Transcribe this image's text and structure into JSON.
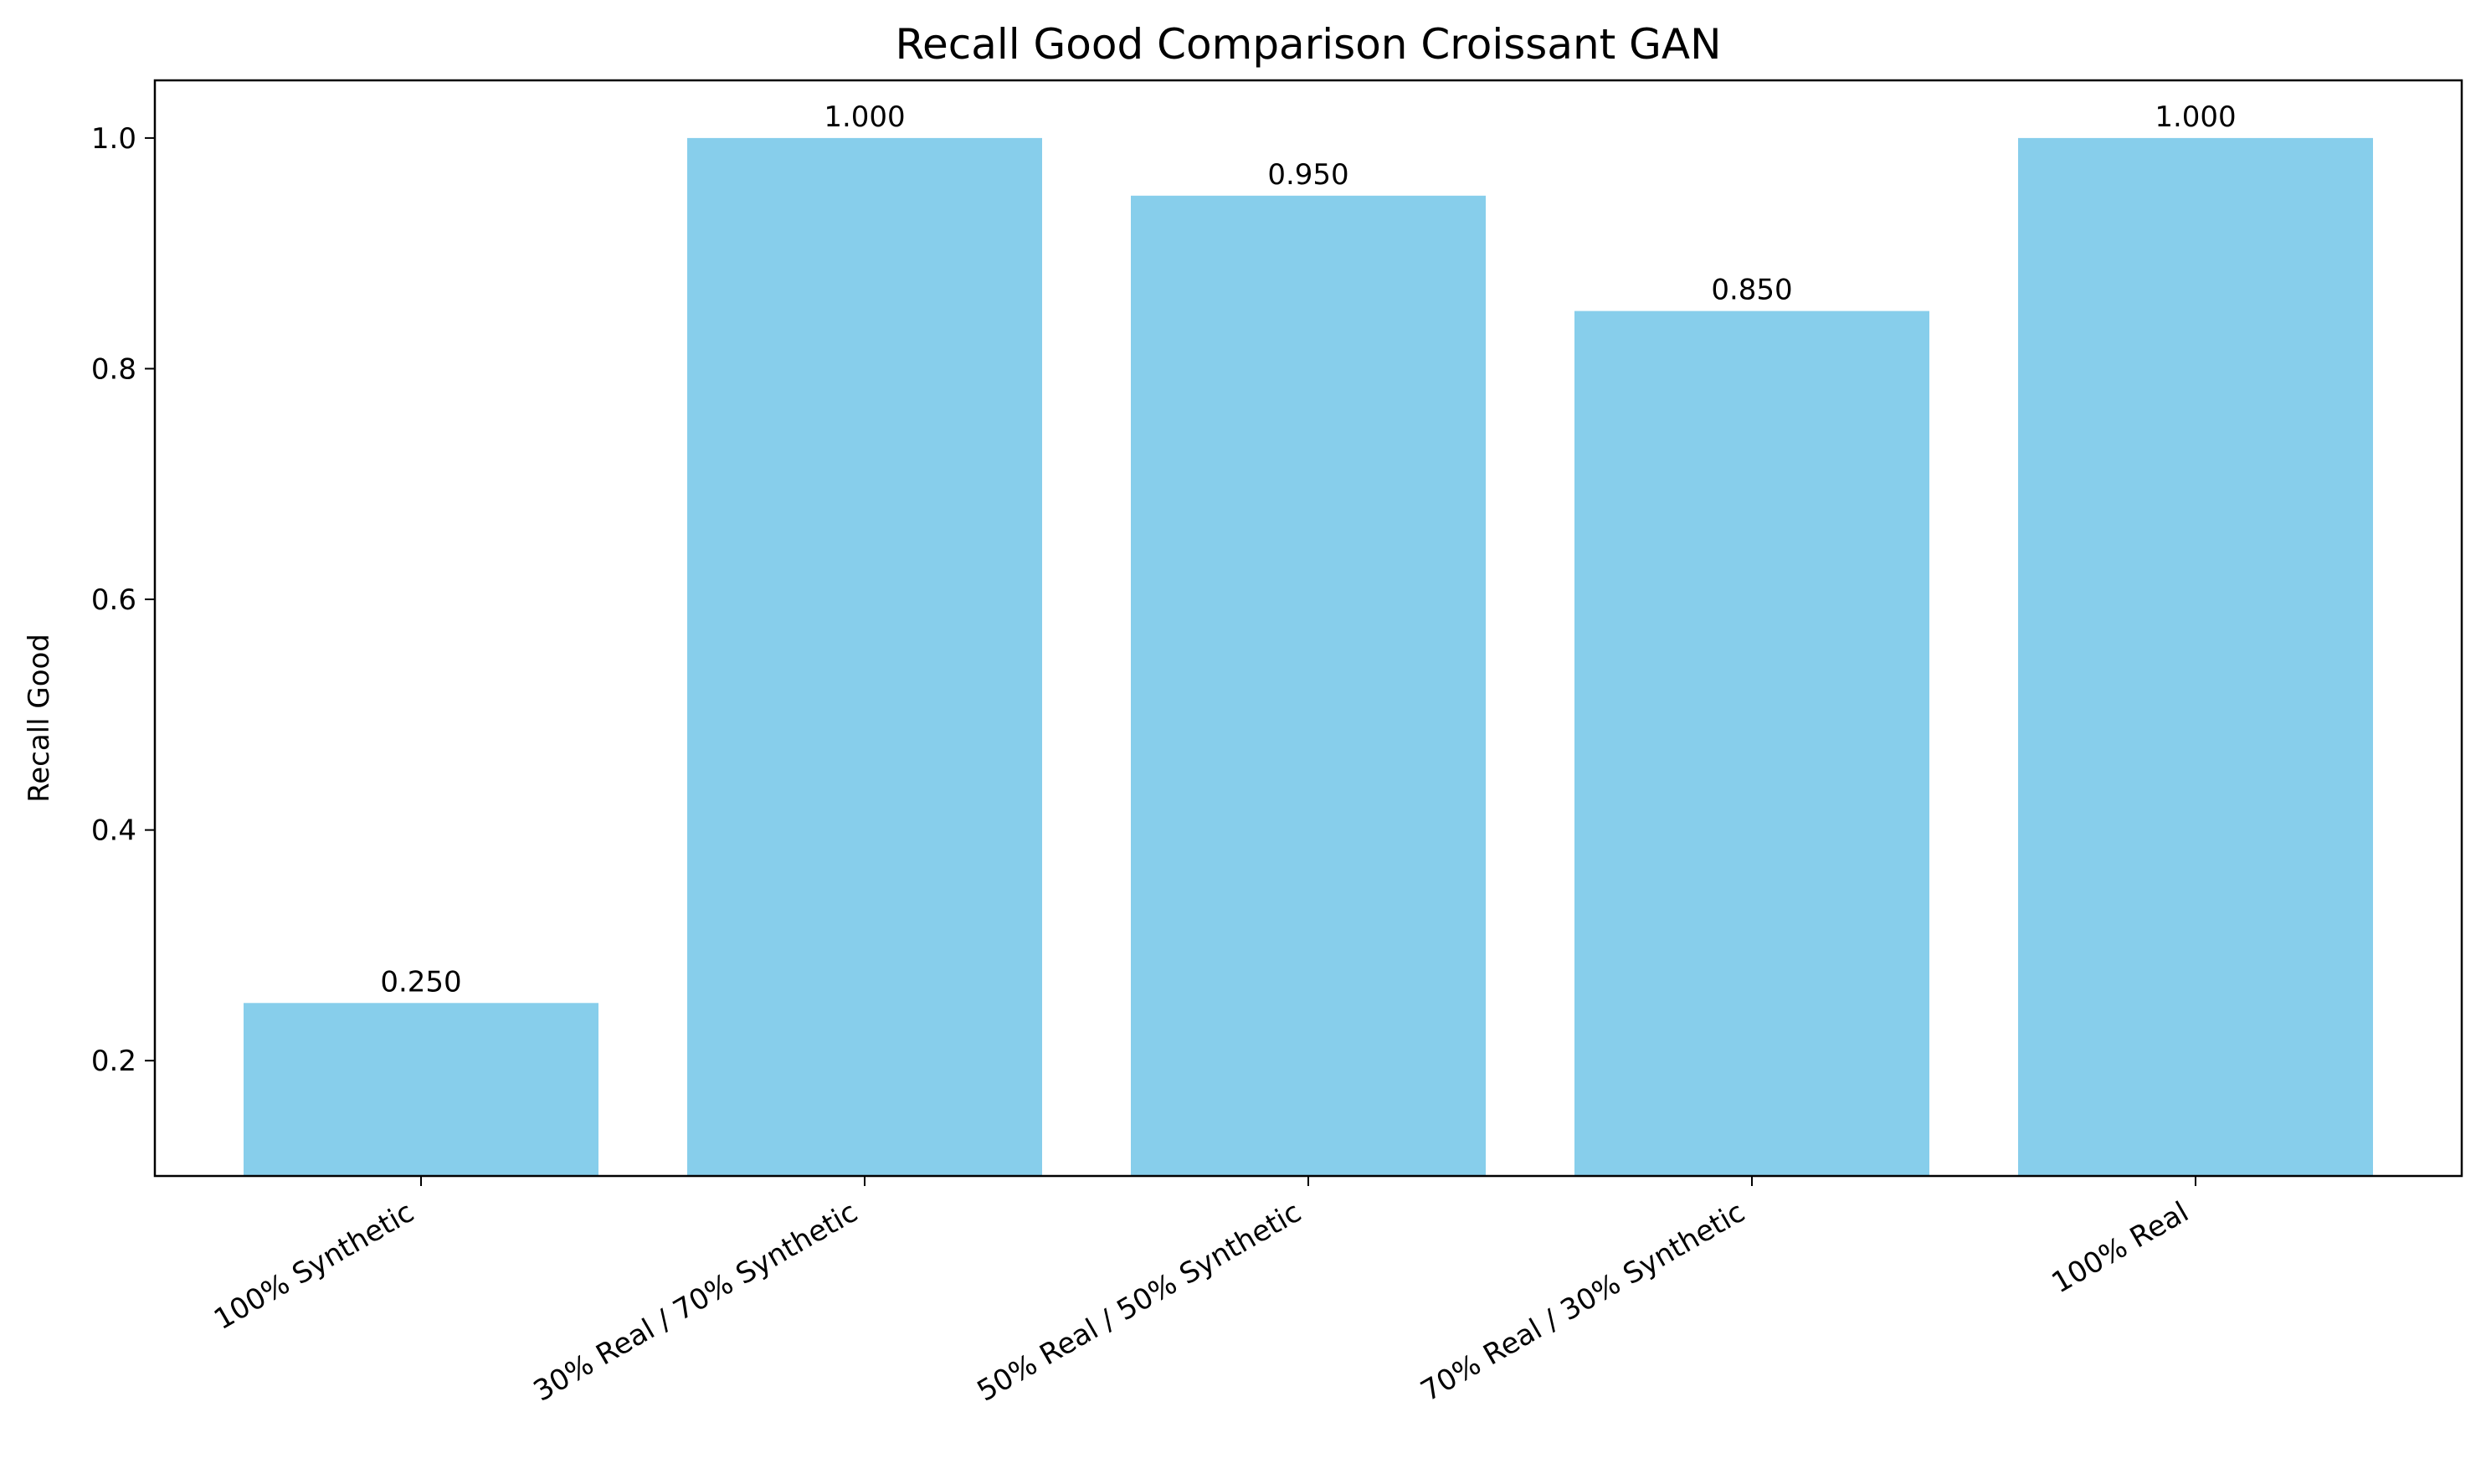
{
  "chart_data": {
    "type": "bar",
    "title": "Recall Good Comparison Croissant GAN",
    "xlabel": "",
    "ylabel": "Recall Good",
    "categories": [
      "100% Synthetic",
      "30% Real / 70% Synthetic",
      "50% Real / 50% Synthetic",
      "70% Real / 30% Synthetic",
      "100% Real"
    ],
    "values": [
      0.25,
      1.0,
      0.95,
      0.85,
      1.0
    ],
    "value_labels": [
      "0.250",
      "1.000",
      "0.950",
      "0.850",
      "1.000"
    ],
    "ylim": [
      0.1,
      1.05
    ],
    "yticks": [
      0.2,
      0.4,
      0.6,
      0.8,
      1.0
    ],
    "ytick_labels": [
      "0.2",
      "0.4",
      "0.6",
      "0.8",
      "1.0"
    ],
    "grid": false,
    "legend": "none",
    "bar_color": "#87ceeb",
    "xtick_rotation_deg": 30
  }
}
